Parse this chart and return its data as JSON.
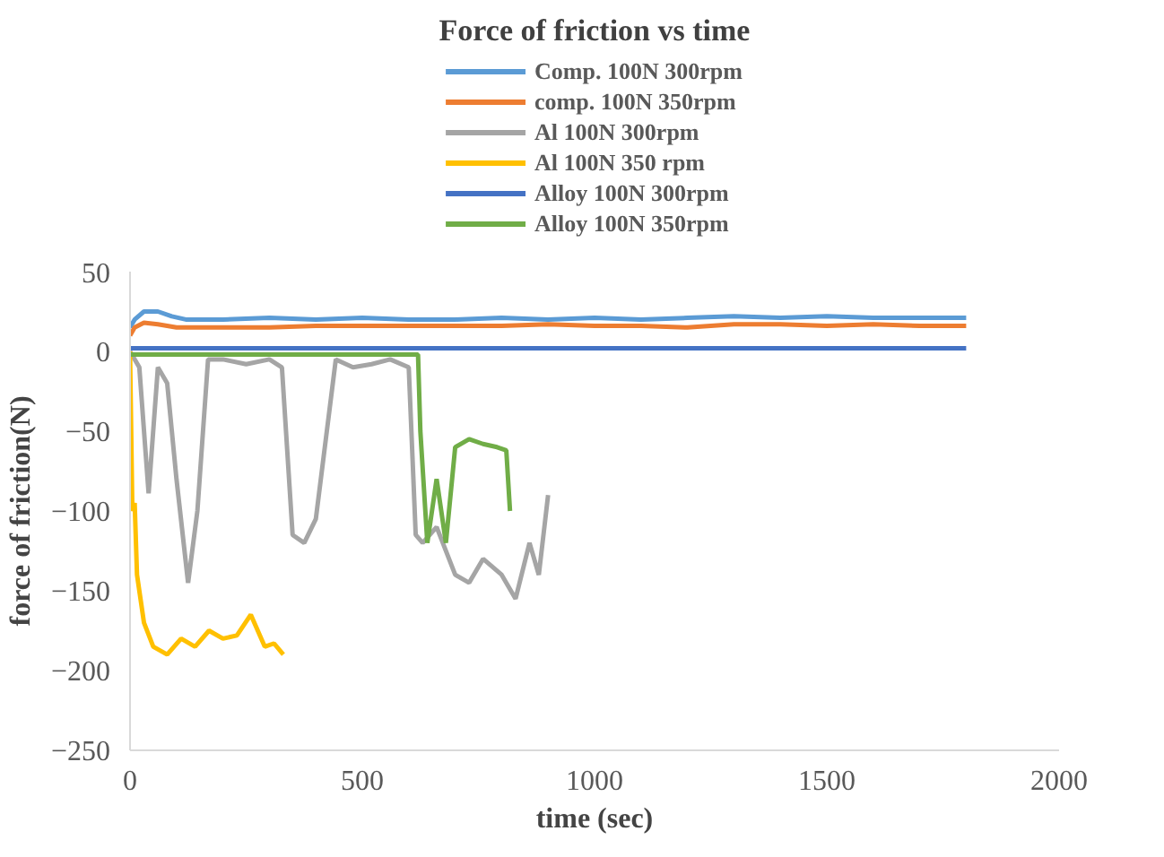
{
  "chart_data": {
    "type": "line",
    "title": "Force of friction vs time",
    "xlabel": "time (sec)",
    "ylabel": "force of friction(N)",
    "xlim": [
      0,
      2000
    ],
    "xticks": [
      0,
      500,
      1000,
      1500,
      2000
    ],
    "ylim": [
      -250,
      50
    ],
    "yticks": [
      -250,
      -200,
      -150,
      -100,
      -50,
      0,
      50
    ],
    "grid": false,
    "legend": "top",
    "line_style": "solid",
    "marker": "none",
    "series": [
      {
        "name": "Comp. 100N 300rpm",
        "color": "#5b9bd5",
        "x": [
          0,
          10,
          30,
          60,
          90,
          120,
          200,
          300,
          400,
          500,
          600,
          700,
          800,
          900,
          1000,
          1100,
          1200,
          1300,
          1400,
          1500,
          1600,
          1700,
          1800
        ],
        "values": [
          15,
          20,
          25,
          25,
          22,
          20,
          20,
          21,
          20,
          21,
          20,
          20,
          21,
          20,
          21,
          20,
          21,
          22,
          21,
          22,
          21,
          21,
          21
        ]
      },
      {
        "name": "comp. 100N 350rpm",
        "color": "#ed7d31",
        "x": [
          0,
          10,
          30,
          60,
          100,
          200,
          300,
          400,
          500,
          600,
          700,
          800,
          900,
          1000,
          1100,
          1200,
          1300,
          1400,
          1500,
          1600,
          1700,
          1800
        ],
        "values": [
          10,
          15,
          18,
          17,
          15,
          15,
          15,
          16,
          16,
          16,
          16,
          16,
          17,
          16,
          16,
          15,
          17,
          17,
          16,
          17,
          16,
          16
        ]
      },
      {
        "name": "Al 100N 300rpm",
        "color": "#a5a5a5",
        "x": [
          0,
          20,
          40,
          60,
          80,
          100,
          125,
          145,
          168,
          200,
          250,
          300,
          327,
          350,
          375,
          400,
          443,
          480,
          520,
          560,
          600,
          615,
          630,
          660,
          700,
          730,
          760,
          800,
          830,
          860,
          880,
          900
        ],
        "values": [
          0,
          -10,
          -89,
          -10,
          -20,
          -80,
          -145,
          -100,
          -5,
          -5,
          -8,
          -5,
          -10,
          -115,
          -120,
          -105,
          -5,
          -10,
          -8,
          -5,
          -10,
          -115,
          -120,
          -110,
          -140,
          -145,
          -130,
          -140,
          -155,
          -120,
          -140,
          -90
        ]
      },
      {
        "name": "Al 100N 350 rpm",
        "color": "#ffc000",
        "x": [
          0,
          5,
          10,
          15,
          30,
          50,
          80,
          110,
          140,
          170,
          200,
          230,
          260,
          290,
          310,
          330
        ],
        "values": [
          0,
          -100,
          -95,
          -140,
          -170,
          -185,
          -190,
          -180,
          -185,
          -175,
          -180,
          -178,
          -165,
          -185,
          -183,
          -190
        ]
      },
      {
        "name": "Alloy 100N 300rpm",
        "color": "#4472c4",
        "x": [
          0,
          200,
          400,
          600,
          800,
          1000,
          1200,
          1400,
          1600,
          1800
        ],
        "values": [
          2,
          2,
          2,
          2,
          2,
          2,
          2,
          2,
          2,
          2
        ]
      },
      {
        "name": "Alloy 100N 350rpm",
        "color": "#70ad47",
        "x": [
          0,
          200,
          400,
          600,
          620,
          625,
          640,
          660,
          680,
          700,
          730,
          760,
          790,
          810,
          818
        ],
        "values": [
          -2,
          -2,
          -2,
          -2,
          -2,
          -50,
          -120,
          -80,
          -120,
          -60,
          -55,
          -58,
          -60,
          -62,
          -100
        ]
      }
    ]
  }
}
